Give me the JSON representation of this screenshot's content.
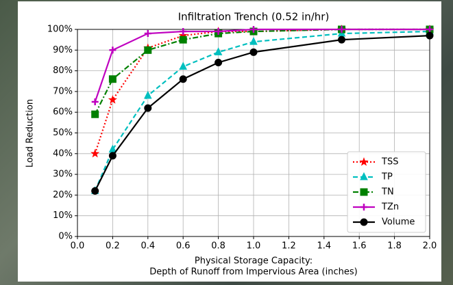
{
  "chart_data": {
    "type": "line",
    "title": "Infiltration Trench (0.52 in/hr)",
    "xlabel": [
      "Physical Storage Capacity:",
      "Depth of Runoff  from Impervious Area (inches)"
    ],
    "ylabel": "Load Reduction",
    "x": [
      0.1,
      0.2,
      0.4,
      0.6,
      0.8,
      1.0,
      1.5,
      2.0
    ],
    "series": [
      {
        "name": "TSS",
        "color": "#ff0000",
        "linestyle": "dotted",
        "marker": "star",
        "values": [
          40,
          66,
          91,
          97,
          99,
          99,
          100,
          100
        ]
      },
      {
        "name": "TP",
        "color": "#00bfbf",
        "linestyle": "dashed",
        "marker": "triangle",
        "values": [
          22,
          42,
          68,
          82,
          89,
          94,
          98,
          99
        ]
      },
      {
        "name": "TN",
        "color": "#008000",
        "linestyle": "dashdot",
        "marker": "square",
        "values": [
          59,
          76,
          90,
          95,
          98,
          99,
          100,
          100
        ]
      },
      {
        "name": "TZn",
        "color": "#bf00bf",
        "linestyle": "solid",
        "marker": "plus",
        "values": [
          65,
          90,
          98,
          99,
          99,
          100,
          100,
          100
        ]
      },
      {
        "name": "Volume",
        "color": "#000000",
        "linestyle": "solid",
        "marker": "circle",
        "values": [
          22,
          39,
          62,
          76,
          84,
          89,
          95,
          97
        ]
      }
    ],
    "xlim": [
      0,
      2
    ],
    "xticks": [
      {
        "value": 0,
        "label": "0.0"
      },
      0.2,
      0.4,
      0.6,
      0.8,
      {
        "value": 1,
        "label": "1.0"
      },
      1.2,
      1.4,
      1.6,
      1.8,
      {
        "value": 2,
        "label": "2.0"
      }
    ],
    "ylim": [
      0,
      100
    ],
    "yticks": [
      {
        "value": 0,
        "label": "0%"
      },
      {
        "value": 10,
        "label": "10%"
      },
      {
        "value": 20,
        "label": "20%"
      },
      {
        "value": 30,
        "label": "30%"
      },
      {
        "value": 40,
        "label": "40%"
      },
      {
        "value": 50,
        "label": "50%"
      },
      {
        "value": 60,
        "label": "60%"
      },
      {
        "value": 70,
        "label": "70%"
      },
      {
        "value": 80,
        "label": "80%"
      },
      {
        "value": 90,
        "label": "90%"
      },
      {
        "value": 100,
        "label": "100%"
      }
    ],
    "grid": true,
    "legend": "lower right"
  }
}
